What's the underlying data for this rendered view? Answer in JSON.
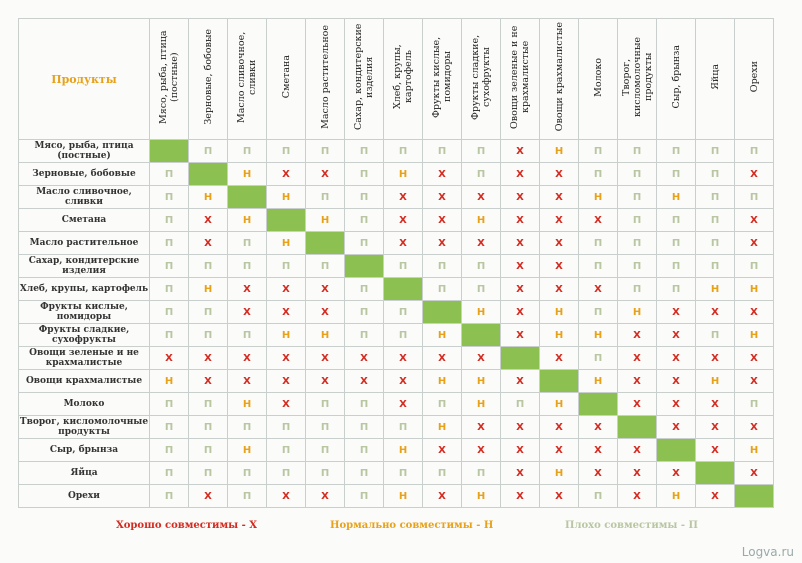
{
  "header": {
    "corner": "Продукты"
  },
  "products": [
    "Мясо, рыба, птица (постные)",
    "Зерновые, бобовые",
    "Масло сливочное, сливки",
    "Сметана",
    "Масло растительное",
    "Сахар, кондитерские изделия",
    "Хлеб, крупы, картофель",
    "Фрукты кислые, помидоры",
    "Фрукты сладкие, сухофрукты",
    "Овощи зеленые и не крахмалистые",
    "Овощи крахмалистые",
    "Молоко",
    "Творог, кисломолочные продукты",
    "Сыр, брынза",
    "Яйца",
    "Орехи"
  ],
  "symbols": {
    "X": "X",
    "H": "Н",
    "P": "П"
  },
  "matrix": [
    [
      "D",
      "P",
      "P",
      "P",
      "P",
      "P",
      "P",
      "P",
      "P",
      "X",
      "H",
      "P",
      "P",
      "P",
      "P",
      "P"
    ],
    [
      "P",
      "D",
      "H",
      "X",
      "X",
      "P",
      "H",
      "X",
      "P",
      "X",
      "X",
      "P",
      "P",
      "P",
      "P",
      "X"
    ],
    [
      "P",
      "H",
      "D",
      "H",
      "P",
      "P",
      "X",
      "X",
      "X",
      "X",
      "X",
      "H",
      "P",
      "H",
      "P",
      "P"
    ],
    [
      "P",
      "X",
      "H",
      "D",
      "H",
      "P",
      "X",
      "X",
      "H",
      "X",
      "X",
      "X",
      "P",
      "P",
      "P",
      "X"
    ],
    [
      "P",
      "X",
      "P",
      "H",
      "D",
      "P",
      "X",
      "X",
      "X",
      "X",
      "X",
      "P",
      "P",
      "P",
      "P",
      "X"
    ],
    [
      "P",
      "P",
      "P",
      "P",
      "P",
      "D",
      "P",
      "P",
      "P",
      "X",
      "X",
      "P",
      "P",
      "P",
      "P",
      "P"
    ],
    [
      "P",
      "H",
      "X",
      "X",
      "X",
      "P",
      "D",
      "P",
      "P",
      "X",
      "X",
      "X",
      "P",
      "P",
      "H",
      "H"
    ],
    [
      "P",
      "P",
      "X",
      "X",
      "X",
      "P",
      "P",
      "D",
      "H",
      "X",
      "H",
      "P",
      "H",
      "X",
      "X",
      "X"
    ],
    [
      "P",
      "P",
      "P",
      "H",
      "H",
      "P",
      "P",
      "H",
      "D",
      "X",
      "H",
      "H",
      "X",
      "X",
      "P",
      "H"
    ],
    [
      "X",
      "X",
      "X",
      "X",
      "X",
      "X",
      "X",
      "X",
      "X",
      "D",
      "X",
      "P",
      "X",
      "X",
      "X",
      "X"
    ],
    [
      "H",
      "X",
      "X",
      "X",
      "X",
      "X",
      "X",
      "H",
      "H",
      "X",
      "D",
      "H",
      "X",
      "X",
      "H",
      "X"
    ],
    [
      "P",
      "P",
      "H",
      "X",
      "P",
      "P",
      "X",
      "P",
      "H",
      "P",
      "H",
      "D",
      "X",
      "X",
      "X",
      "P"
    ],
    [
      "P",
      "P",
      "P",
      "P",
      "P",
      "P",
      "P",
      "H",
      "X",
      "X",
      "X",
      "X",
      "D",
      "X",
      "X",
      "X"
    ],
    [
      "P",
      "P",
      "H",
      "P",
      "P",
      "P",
      "H",
      "X",
      "X",
      "X",
      "X",
      "X",
      "X",
      "D",
      "X",
      "H"
    ],
    [
      "P",
      "P",
      "P",
      "P",
      "P",
      "P",
      "P",
      "P",
      "P",
      "X",
      "H",
      "X",
      "X",
      "X",
      "D",
      "X"
    ],
    [
      "P",
      "X",
      "P",
      "X",
      "X",
      "P",
      "H",
      "X",
      "H",
      "X",
      "X",
      "P",
      "X",
      "H",
      "X",
      "D"
    ]
  ],
  "legend": {
    "good": "Хорошо совместимы - X",
    "normal": "Нормально совместимы - Н",
    "bad": "Плохо совместимы - П"
  },
  "watermark": "Logva.ru",
  "colors": {
    "diagonal": "#8cc152",
    "good": "#d42a1f",
    "normal": "#e8a21a",
    "bad": "#b9c6a2"
  }
}
